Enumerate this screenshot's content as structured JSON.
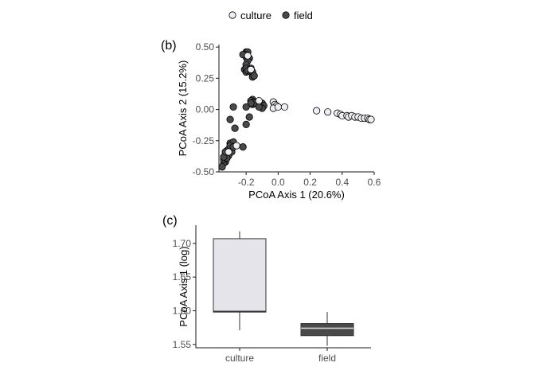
{
  "legend": {
    "placement": "top-center",
    "entries": [
      {
        "label": "culture",
        "color": "#eeeef4"
      },
      {
        "label": "field",
        "color": "#4a4a4a"
      }
    ]
  },
  "chart_data": [
    {
      "panel_label": "(b)",
      "type": "scatter",
      "xlabel": "PCoA Axis 1 (20.6%)",
      "ylabel": "PCoA Axis 2 (15.2%)",
      "xlim": [
        -0.37,
        0.6
      ],
      "ylim": [
        -0.5,
        0.52
      ],
      "xticks": [
        -0.2,
        0.0,
        0.2,
        0.4,
        0.6
      ],
      "xtick_labels": [
        "-0.2",
        "0.0",
        "0.2",
        "0.4",
        "0.6"
      ],
      "yticks": [
        0.5,
        0.25,
        0.0,
        -0.25,
        -0.5
      ],
      "ytick_labels": [
        "0.50",
        "0.25",
        "0.00",
        "-0.25",
        "-0.50"
      ],
      "grid": false,
      "series": [
        {
          "name": "field",
          "color": "#4a4a4a",
          "points": [
            [
              -0.2,
              0.46
            ],
            [
              -0.19,
              0.46
            ],
            [
              -0.2,
              0.44
            ],
            [
              -0.2,
              0.42
            ],
            [
              -0.22,
              0.44
            ],
            [
              -0.18,
              0.41
            ],
            [
              -0.19,
              0.39
            ],
            [
              -0.2,
              0.36
            ],
            [
              -0.21,
              0.32
            ],
            [
              -0.2,
              0.3
            ],
            [
              -0.2,
              0.33
            ],
            [
              -0.19,
              0.31
            ],
            [
              -0.17,
              0.3
            ],
            [
              -0.16,
              0.3
            ],
            [
              -0.16,
              0.26
            ],
            [
              -0.17,
              0.33
            ],
            [
              -0.15,
              0.27
            ],
            [
              -0.16,
              0.08
            ],
            [
              -0.17,
              0.07
            ],
            [
              -0.15,
              0.06
            ],
            [
              -0.16,
              0.04
            ],
            [
              -0.15,
              0.05
            ],
            [
              -0.17,
              0.05
            ],
            [
              -0.18,
              -0.06
            ],
            [
              -0.2,
              0.02
            ],
            [
              -0.1,
              0.05
            ],
            [
              -0.09,
              0.03
            ],
            [
              -0.1,
              0.01
            ],
            [
              -0.12,
              0.02
            ],
            [
              -0.28,
              0.02
            ],
            [
              -0.3,
              -0.08
            ],
            [
              -0.27,
              -0.15
            ],
            [
              -0.2,
              -0.12
            ],
            [
              -0.22,
              -0.3
            ],
            [
              -0.3,
              -0.27
            ],
            [
              -0.28,
              -0.26
            ],
            [
              -0.3,
              -0.32
            ],
            [
              -0.31,
              -0.36
            ],
            [
              -0.32,
              -0.36
            ],
            [
              -0.3,
              -0.3
            ],
            [
              -0.33,
              -0.41
            ],
            [
              -0.31,
              -0.37
            ],
            [
              -0.33,
              -0.42
            ],
            [
              -0.34,
              -0.43
            ],
            [
              -0.35,
              -0.46
            ],
            [
              -0.34,
              -0.4
            ],
            [
              -0.32,
              -0.39
            ],
            [
              -0.34,
              -0.38
            ],
            [
              -0.32,
              -0.33
            ],
            [
              -0.31,
              -0.32
            ],
            [
              -0.33,
              -0.34
            ],
            [
              -0.3,
              -0.29
            ],
            [
              -0.29,
              -0.34
            ],
            [
              -0.28,
              -0.3
            ]
          ]
        },
        {
          "name": "culture",
          "color": "#eeeef4",
          "points": [
            [
              -0.19,
              0.43
            ],
            [
              -0.17,
              0.32
            ],
            [
              -0.12,
              0.07
            ],
            [
              -0.03,
              0.06
            ],
            [
              -0.02,
              0.04
            ],
            [
              -0.01,
              0.03
            ],
            [
              -0.03,
              0.01
            ],
            [
              0.0,
              0.02
            ],
            [
              0.04,
              0.02
            ],
            [
              -0.26,
              -0.29
            ],
            [
              0.24,
              -0.01
            ],
            [
              0.31,
              -0.02
            ],
            [
              0.37,
              -0.03
            ],
            [
              0.39,
              -0.04
            ],
            [
              0.4,
              -0.05
            ],
            [
              0.43,
              -0.05
            ],
            [
              0.44,
              -0.06
            ],
            [
              0.46,
              -0.05
            ],
            [
              0.48,
              -0.06
            ],
            [
              0.5,
              -0.06
            ],
            [
              0.52,
              -0.07
            ],
            [
              0.54,
              -0.07
            ],
            [
              0.56,
              -0.07
            ],
            [
              0.57,
              -0.08
            ],
            [
              0.58,
              -0.08
            ],
            [
              -0.31,
              -0.34
            ]
          ]
        }
      ]
    },
    {
      "panel_label": "(c)",
      "type": "box",
      "xlabel": "",
      "ylabel": "PCoA Axis 1 (log)",
      "categories": [
        "culture",
        "field"
      ],
      "ylim": [
        1.545,
        1.727
      ],
      "yticks": [
        1.7,
        1.65,
        1.6,
        1.55
      ],
      "ytick_labels": [
        "1.70",
        "1.65",
        "1.60",
        "1.55"
      ],
      "grid": false,
      "boxes": [
        {
          "category": "culture",
          "min": 1.571,
          "q1": 1.598,
          "median": 1.599,
          "q3": 1.707,
          "max": 1.718,
          "fill": "#e4e4ea"
        },
        {
          "category": "field",
          "min": 1.548,
          "q1": 1.563,
          "median": 1.574,
          "q3": 1.581,
          "max": 1.598,
          "fill": "#4a4a4a"
        }
      ]
    }
  ]
}
